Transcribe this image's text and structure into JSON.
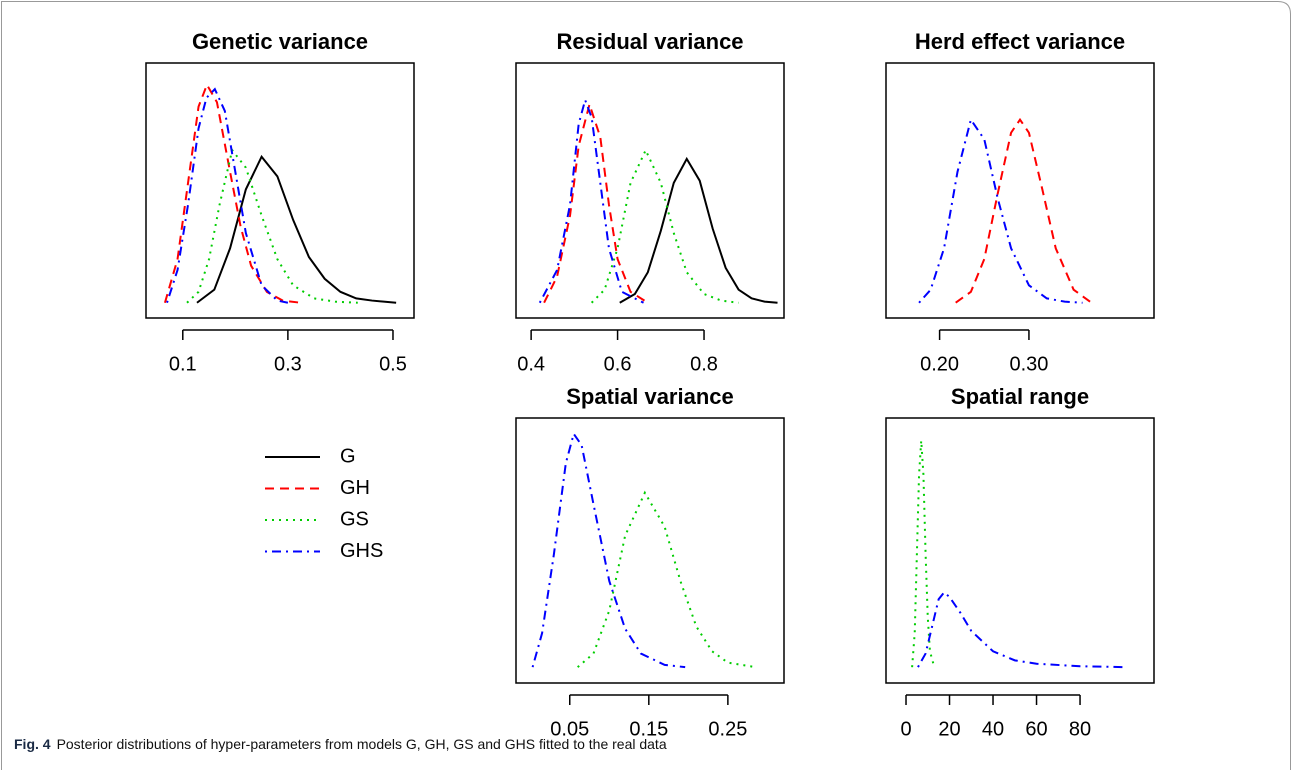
{
  "chart_data": [
    {
      "type": "line",
      "title": "Genetic variance",
      "xlim": [
        0.03,
        0.54
      ],
      "ylim": [
        -0.07,
        1.1
      ],
      "xticks": [
        0.1,
        0.3,
        0.5
      ],
      "series": [
        {
          "name": "G",
          "color": "#000000",
          "linestyle": "solid",
          "x": [
            0.127,
            0.16,
            0.19,
            0.22,
            0.25,
            0.28,
            0.31,
            0.34,
            0.37,
            0.4,
            0.43,
            0.46,
            0.506
          ],
          "values": [
            0,
            0.06,
            0.25,
            0.52,
            0.67,
            0.58,
            0.38,
            0.21,
            0.11,
            0.05,
            0.02,
            0.01,
            0
          ]
        },
        {
          "name": "GH",
          "color": "#ff0000",
          "linestyle": "dashed",
          "x": [
            0.066,
            0.09,
            0.11,
            0.13,
            0.146,
            0.165,
            0.19,
            0.21,
            0.23,
            0.26,
            0.29,
            0.324
          ],
          "values": [
            0,
            0.2,
            0.55,
            0.9,
            1.0,
            0.92,
            0.6,
            0.35,
            0.17,
            0.05,
            0.01,
            0
          ]
        },
        {
          "name": "GS",
          "color": "#00cd00",
          "linestyle": "dotted",
          "x": [
            0.108,
            0.13,
            0.15,
            0.17,
            0.194,
            0.22,
            0.25,
            0.28,
            0.31,
            0.35,
            0.39,
            0.433
          ],
          "values": [
            0,
            0.05,
            0.2,
            0.45,
            0.7,
            0.62,
            0.4,
            0.2,
            0.08,
            0.02,
            0.005,
            0
          ]
        },
        {
          "name": "GHS",
          "color": "#0000ff",
          "linestyle": "dotdash",
          "x": [
            0.07,
            0.09,
            0.11,
            0.13,
            0.145,
            0.161,
            0.18,
            0.2,
            0.22,
            0.25,
            0.28,
            0.3
          ],
          "values": [
            0,
            0.15,
            0.45,
            0.8,
            0.94,
            0.98,
            0.88,
            0.6,
            0.32,
            0.08,
            0.01,
            0
          ]
        }
      ]
    },
    {
      "type": "line",
      "title": "Residual variance",
      "xlim": [
        0.365,
        0.985
      ],
      "ylim": [
        -0.07,
        1.1
      ],
      "xticks": [
        0.4,
        0.6,
        0.8
      ],
      "series": [
        {
          "color": "#000000",
          "linestyle": "solid",
          "x": [
            0.605,
            0.64,
            0.67,
            0.7,
            0.73,
            0.76,
            0.79,
            0.82,
            0.85,
            0.88,
            0.91,
            0.94,
            0.97
          ],
          "values": [
            0,
            0.04,
            0.14,
            0.33,
            0.55,
            0.66,
            0.56,
            0.34,
            0.16,
            0.06,
            0.02,
            0.005,
            0
          ]
        },
        {
          "color": "#ff0000",
          "linestyle": "dashed",
          "x": [
            0.43,
            0.46,
            0.49,
            0.51,
            0.535,
            0.56,
            0.58,
            0.6,
            0.63,
            0.67
          ],
          "values": [
            0,
            0.12,
            0.4,
            0.72,
            0.91,
            0.76,
            0.45,
            0.2,
            0.05,
            0
          ]
        },
        {
          "color": "#00cd00",
          "linestyle": "dotted",
          "x": [
            0.54,
            0.57,
            0.6,
            0.63,
            0.665,
            0.7,
            0.73,
            0.76,
            0.8,
            0.84,
            0.88
          ],
          "values": [
            0,
            0.06,
            0.25,
            0.55,
            0.7,
            0.55,
            0.32,
            0.14,
            0.04,
            0.01,
            0
          ]
        },
        {
          "color": "#0000ff",
          "linestyle": "dotdash",
          "x": [
            0.42,
            0.46,
            0.49,
            0.51,
            0.525,
            0.54,
            0.56,
            0.58,
            0.61,
            0.66
          ],
          "values": [
            0,
            0.15,
            0.45,
            0.82,
            0.93,
            0.85,
            0.55,
            0.25,
            0.05,
            0
          ]
        }
      ]
    },
    {
      "type": "line",
      "title": "Herd effect variance",
      "xlim": [
        0.14,
        0.44
      ],
      "ylim": [
        -0.07,
        1.1
      ],
      "xticks": [
        {
          "value": 0.2,
          "label": "0.20"
        },
        {
          "value": 0.3,
          "label": "0.30"
        }
      ],
      "series": [
        {
          "color": "#ff0000",
          "linestyle": "dashed",
          "x": [
            0.218,
            0.235,
            0.25,
            0.265,
            0.28,
            0.29,
            0.3,
            0.315,
            0.33,
            0.35,
            0.37
          ],
          "values": [
            0,
            0.05,
            0.2,
            0.5,
            0.78,
            0.84,
            0.78,
            0.52,
            0.25,
            0.06,
            0
          ]
        },
        {
          "color": "#0000ff",
          "linestyle": "dotdash",
          "x": [
            0.177,
            0.19,
            0.205,
            0.22,
            0.235,
            0.25,
            0.265,
            0.28,
            0.3,
            0.32,
            0.34,
            0.36
          ],
          "values": [
            0,
            0.06,
            0.25,
            0.6,
            0.84,
            0.75,
            0.48,
            0.25,
            0.08,
            0.02,
            0.005,
            0
          ]
        }
      ]
    },
    {
      "type": "line",
      "title": "Spatial variance",
      "xlim": [
        -0.018,
        0.321
      ],
      "ylim": [
        -0.07,
        1.1
      ],
      "xticks": [
        0.05,
        0.15,
        0.25
      ],
      "series": [
        {
          "color": "#00cd00",
          "linestyle": "dotted",
          "x": [
            0.06,
            0.08,
            0.1,
            0.12,
            0.145,
            0.17,
            0.19,
            0.21,
            0.23,
            0.25,
            0.285
          ],
          "values": [
            0,
            0.06,
            0.25,
            0.58,
            0.77,
            0.62,
            0.38,
            0.18,
            0.07,
            0.02,
            0
          ]
        },
        {
          "color": "#0000ff",
          "linestyle": "dotdash",
          "x": [
            0.003,
            0.015,
            0.03,
            0.045,
            0.055,
            0.065,
            0.08,
            0.1,
            0.12,
            0.14,
            0.17,
            0.196
          ],
          "values": [
            0,
            0.15,
            0.5,
            0.9,
            1.03,
            0.98,
            0.72,
            0.38,
            0.17,
            0.06,
            0.01,
            0
          ]
        }
      ]
    },
    {
      "type": "line",
      "title": "Spatial range",
      "xlim": [
        -9.2,
        114
      ],
      "ylim": [
        -0.07,
        1.1
      ],
      "xticks": [
        0,
        20,
        40,
        60,
        80
      ],
      "series": [
        {
          "color": "#00cd00",
          "linestyle": "dotted",
          "x": [
            2.8,
            4,
            5,
            6,
            7,
            8,
            9,
            10,
            11,
            13
          ],
          "values": [
            0,
            0.15,
            0.5,
            0.85,
            1.0,
            0.85,
            0.5,
            0.22,
            0.07,
            0
          ]
        },
        {
          "color": "#0000ff",
          "linestyle": "dotdash",
          "x": [
            5.5,
            9,
            12,
            15,
            17.5,
            20,
            25,
            30,
            40,
            50,
            60,
            80,
            101.5
          ],
          "values": [
            0,
            0.06,
            0.18,
            0.3,
            0.33,
            0.31,
            0.24,
            0.16,
            0.07,
            0.03,
            0.015,
            0.004,
            0
          ]
        }
      ]
    }
  ],
  "caption": {
    "label": "Fig. 4",
    "text": "Posterior distributions of hyper-parameters from models G, GH, GS and GHS fitted to the real data"
  }
}
